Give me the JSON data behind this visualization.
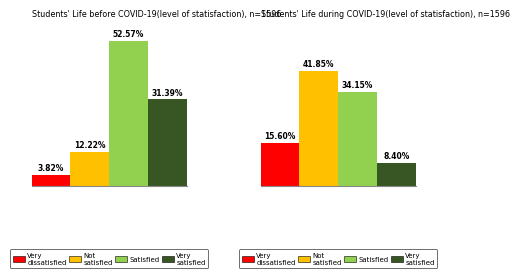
{
  "before": {
    "title": "Students' Life before COVID-19(level of statisfaction), n=1596",
    "values": [
      3.82,
      12.22,
      52.57,
      31.39
    ],
    "colors": [
      "#ff0000",
      "#ffc000",
      "#92d050",
      "#375623"
    ],
    "labels": [
      "3.82%",
      "12.22%",
      "52.57%",
      "31.39%"
    ]
  },
  "during": {
    "title": "Students' Life during COVID-19(level of statisfaction), n=1596",
    "values": [
      15.6,
      41.85,
      34.15,
      8.4
    ],
    "colors": [
      "#ff0000",
      "#ffc000",
      "#92d050",
      "#375623"
    ],
    "labels": [
      "15.60%",
      "41.85%",
      "34.15%",
      "8.40%"
    ]
  },
  "legend_labels": [
    "Very\ndissatisfied",
    "Not\nsatisfied",
    "Satisfied",
    "Very\nsatisfied"
  ],
  "legend_colors": [
    "#ff0000",
    "#ffc000",
    "#92d050",
    "#375623"
  ],
  "title_fontsize": 5.8,
  "label_fontsize": 5.5,
  "legend_fontsize": 5.0,
  "bar_width": 1.0,
  "ylim": [
    0,
    60
  ],
  "background_color": "#ffffff"
}
